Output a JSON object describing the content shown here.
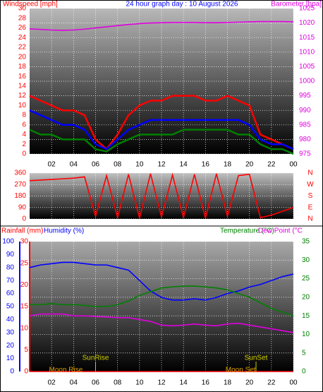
{
  "chart_data": [
    {
      "type": "line",
      "title": "24 hour graph day : 10 August 2026",
      "ylabel": "Windspeed [mph]",
      "y2label": "Barometer [hpa]",
      "xlim": [
        0,
        24
      ],
      "xticks": [
        {
          "value": 2,
          "label": "02"
        },
        {
          "value": 4,
          "label": "04"
        },
        {
          "value": 6,
          "label": "06"
        },
        {
          "value": 8,
          "label": "08"
        },
        10,
        12,
        14,
        16,
        18,
        20,
        22,
        {
          "value": 24,
          "label": "00"
        }
      ],
      "ylim": [
        0,
        30
      ],
      "yticks": [
        0,
        2,
        4,
        6,
        8,
        10,
        12,
        14,
        16,
        18,
        20,
        22,
        24,
        26,
        28,
        30
      ],
      "y2lim": [
        975,
        1025
      ],
      "y2ticks": [
        975,
        980,
        985,
        990,
        995,
        1000,
        1005,
        1010,
        1015,
        1020,
        1025
      ],
      "grid": true,
      "x": [
        0,
        1,
        2,
        3,
        4,
        5,
        6,
        7,
        8,
        9,
        10,
        11,
        12,
        13,
        14,
        15,
        16,
        17,
        18,
        19,
        20,
        21,
        22,
        23,
        24
      ],
      "series": [
        {
          "color": "#ff0000",
          "values": [
            12,
            11,
            10,
            9,
            9,
            8,
            3,
            1,
            4,
            8,
            10,
            11,
            11,
            12,
            12,
            12,
            11,
            11,
            12,
            11,
            10,
            4,
            3,
            2,
            1
          ]
        },
        {
          "color": "#0000ff",
          "values": [
            9,
            8,
            7,
            6,
            6,
            5,
            2,
            1,
            3,
            5,
            6,
            7,
            7,
            7,
            7,
            7,
            7,
            7,
            7,
            7,
            6,
            3,
            2,
            2,
            1
          ]
        },
        {
          "color": "#008000",
          "values": [
            5,
            4,
            4,
            3,
            3,
            3,
            1,
            0.5,
            2,
            3,
            4,
            4,
            4,
            4,
            5,
            5,
            5,
            5,
            5,
            4,
            4,
            2,
            1,
            1,
            0
          ]
        },
        {
          "color": "#e000e0",
          "axis": "y2",
          "values": [
            1018,
            1017.8,
            1017.6,
            1017.5,
            1017.6,
            1017.9,
            1018.3,
            1018.7,
            1019.1,
            1019.5,
            1019.8,
            1020,
            1020.1,
            1020.2,
            1020.2,
            1020.2,
            1020.1,
            1020.1,
            1020.2,
            1020.3,
            1020.4,
            1020.5,
            1020.5,
            1020.5,
            1020.4
          ]
        }
      ]
    },
    {
      "type": "line",
      "xlim": [
        0,
        24
      ],
      "ylim": [
        0,
        360
      ],
      "yticks": [
        0,
        90,
        180,
        270,
        360
      ],
      "compass": [
        "N",
        "E",
        "S",
        "W",
        "N"
      ],
      "grid": true,
      "x": [
        0,
        1,
        2,
        3,
        4,
        5,
        6,
        7,
        8,
        9,
        10,
        11,
        12,
        13,
        14,
        15,
        16,
        17,
        18,
        19,
        20,
        21,
        22,
        23,
        24
      ],
      "series": [
        {
          "color": "#ff0000",
          "values": [
            300,
            305,
            310,
            315,
            320,
            330,
            20,
            340,
            10,
            350,
            5,
            355,
            15,
            345,
            10,
            350,
            5,
            355,
            20,
            340,
            350,
            10,
            30,
            60,
            90
          ]
        }
      ]
    },
    {
      "type": "line",
      "xlim": [
        0,
        24
      ],
      "xticks": [
        {
          "value": 2,
          "label": "02"
        },
        {
          "value": 4,
          "label": "04"
        },
        {
          "value": 6,
          "label": "06"
        },
        {
          "value": 8,
          "label": "08"
        },
        10,
        12,
        14,
        16,
        18,
        20,
        22,
        {
          "value": 24,
          "label": "00"
        }
      ],
      "ylim": [
        0,
        100
      ],
      "yticks": [
        0,
        10,
        20,
        30,
        40,
        50,
        60,
        70,
        80,
        90,
        100
      ],
      "y2lim": [
        0,
        35
      ],
      "y2ticks": [
        0,
        5,
        10,
        15,
        20,
        25,
        30,
        35
      ],
      "y3lim": [
        0,
        30
      ],
      "y3ticks": [
        0,
        5,
        10,
        15,
        20,
        25,
        30
      ],
      "grid": true,
      "x": [
        0,
        1,
        2,
        3,
        4,
        5,
        6,
        7,
        8,
        9,
        10,
        11,
        12,
        13,
        14,
        15,
        16,
        17,
        18,
        19,
        20,
        21,
        22,
        23,
        24
      ],
      "series": [
        {
          "name": "Rainfall (mm)",
          "color": "#ff0000",
          "axis": "y3",
          "values": [
            0,
            0,
            0,
            0,
            0,
            0,
            0,
            0,
            0,
            0,
            0,
            0,
            0,
            0,
            0,
            0,
            0,
            0,
            0,
            0,
            0,
            0,
            0,
            0,
            0
          ]
        },
        {
          "name": "Humidity (%)",
          "color": "#0000ff",
          "values": [
            80,
            82,
            83,
            84,
            84,
            83,
            82,
            82,
            80,
            78,
            70,
            62,
            57,
            55,
            55,
            56,
            55,
            57,
            60,
            62,
            65,
            67,
            70,
            73,
            75
          ]
        },
        {
          "name": "Temperature (°C)",
          "color": "#008000",
          "axis": "y2",
          "values": [
            18,
            18,
            18.3,
            18,
            18,
            17.8,
            17.5,
            17.5,
            18,
            19,
            20.5,
            21.5,
            22.5,
            22.8,
            23,
            23,
            22.8,
            22.5,
            22,
            21,
            20,
            18.5,
            17,
            16,
            15
          ]
        },
        {
          "name": "Dew Point (°C",
          "color": "#e000e0",
          "axis": "y2",
          "values": [
            15,
            15.5,
            15.5,
            15.5,
            15,
            15,
            14.8,
            14.7,
            14.5,
            14.5,
            14,
            13.5,
            12.5,
            12.3,
            12.5,
            12.8,
            12.5,
            12.3,
            12.8,
            13,
            12.5,
            12,
            11.5,
            11,
            10.5
          ]
        }
      ],
      "sun_events": [
        {
          "text": "SunRise",
          "x": 6
        },
        {
          "text": "SunSet",
          "x": 20.6
        }
      ],
      "moon_events": [
        {
          "text": "Moon Rise",
          "x": 3.3
        },
        {
          "text": "Moon Set",
          "x": 19.2
        }
      ]
    }
  ]
}
